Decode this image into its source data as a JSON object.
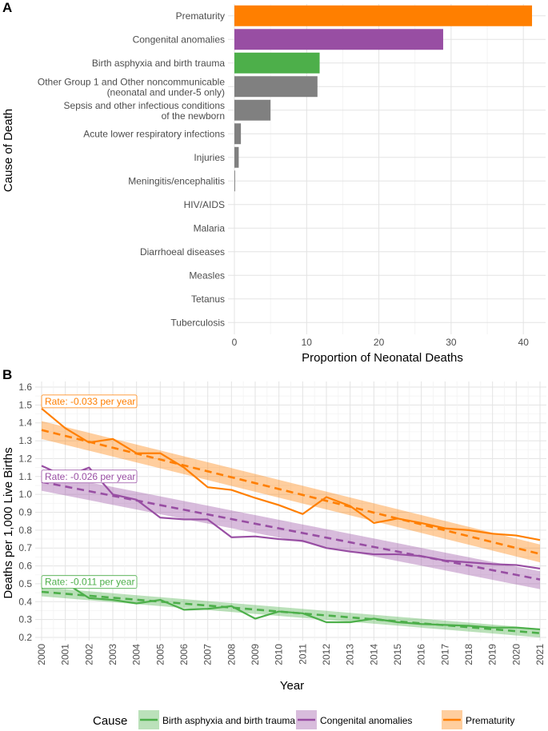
{
  "chart_data": [
    {
      "panel": "A",
      "type": "bar",
      "orientation": "horizontal",
      "ylabel": "Cause of Death",
      "xlabel": "Proportion of Neonatal Deaths",
      "xlim": [
        0,
        43
      ],
      "xticks": [
        "0",
        "10",
        "20",
        "30",
        "40"
      ],
      "xtick_values": [
        0,
        10,
        20,
        30,
        40
      ],
      "categories": [
        [
          "Prematurity"
        ],
        [
          "Congenital anomalies"
        ],
        [
          "Birth asphyxia and birth trauma"
        ],
        [
          "Other Group 1 and Other noncommunicable",
          "(neonatal and under-5 only)"
        ],
        [
          "Sepsis and other infectious conditions",
          "of the newborn"
        ],
        [
          "Acute lower respiratory infections"
        ],
        [
          "Injuries"
        ],
        [
          "Meningitis/encephalitis"
        ],
        [
          "HIV/AIDS"
        ],
        [
          "Malaria"
        ],
        [
          "Diarrhoeal diseases"
        ],
        [
          "Measles"
        ],
        [
          "Tetanus"
        ],
        [
          "Tuberculosis"
        ]
      ],
      "values": [
        41.2,
        28.9,
        11.8,
        11.5,
        5.0,
        0.9,
        0.6,
        0.1,
        0.0,
        0.0,
        0.0,
        0.0,
        0.0,
        0.0
      ],
      "colors": [
        "#ff7f00",
        "#984ea3",
        "#4daf4a",
        "#808080",
        "#808080",
        "#808080",
        "#808080",
        "#808080",
        "#808080",
        "#808080",
        "#808080",
        "#808080",
        "#808080",
        "#808080"
      ]
    },
    {
      "panel": "B",
      "type": "line",
      "ylabel": "Deaths per 1,000 Live Births",
      "xlabel": "Year",
      "ylim": [
        0.2,
        1.6
      ],
      "yticks": [
        "0.2",
        "0.3",
        "0.4",
        "0.5",
        "0.6",
        "0.7",
        "0.8",
        "0.9",
        "1.0",
        "1.1",
        "1.2",
        "1.3",
        "1.4",
        "1.5",
        "1.6"
      ],
      "ytick_values": [
        0.2,
        0.3,
        0.4,
        0.5,
        0.6,
        0.7,
        0.8,
        0.9,
        1.0,
        1.1,
        1.2,
        1.3,
        1.4,
        1.5,
        1.6
      ],
      "x": [
        2000,
        2001,
        2002,
        2003,
        2004,
        2005,
        2006,
        2007,
        2008,
        2009,
        2010,
        2011,
        2012,
        2013,
        2014,
        2015,
        2016,
        2017,
        2018,
        2019,
        2020,
        2021
      ],
      "xticks": [
        "2000",
        "2001",
        "2002",
        "2003",
        "2004",
        "2005",
        "2006",
        "2007",
        "2008",
        "2009",
        "2010",
        "2011",
        "2012",
        "2013",
        "2014",
        "2015",
        "2016",
        "2017",
        "2018",
        "2019",
        "2020",
        "2021"
      ],
      "legend_title": "Cause",
      "legend_position": "bottom",
      "series": [
        {
          "name": "Prematurity",
          "color": "#ff7f00",
          "values": [
            1.48,
            1.37,
            1.29,
            1.31,
            1.23,
            1.23,
            1.15,
            1.04,
            1.025,
            0.98,
            0.94,
            0.89,
            0.985,
            0.935,
            0.84,
            0.865,
            0.84,
            0.81,
            0.8,
            0.78,
            0.77,
            0.745
          ],
          "trend": [
            1.36,
            1.327,
            1.294,
            1.261,
            1.228,
            1.195,
            1.162,
            1.129,
            1.096,
            1.063,
            1.03,
            0.997,
            0.964,
            0.931,
            0.898,
            0.865,
            0.832,
            0.799,
            0.766,
            0.733,
            0.7,
            0.667
          ],
          "band_start": [
            1.31,
            1.41
          ],
          "band_end": [
            0.62,
            0.72
          ],
          "label": "Rate: -0.033 per year",
          "label_y": 1.52
        },
        {
          "name": "Congenital anomalies",
          "color": "#984ea3",
          "values": [
            1.16,
            1.1,
            1.15,
            1.0,
            0.97,
            0.87,
            0.86,
            0.86,
            0.76,
            0.765,
            0.75,
            0.74,
            0.7,
            0.68,
            0.665,
            0.665,
            0.655,
            0.63,
            0.62,
            0.61,
            0.605,
            0.585
          ],
          "trend": [
            1.07,
            1.044,
            1.018,
            0.992,
            0.966,
            0.94,
            0.914,
            0.888,
            0.862,
            0.836,
            0.81,
            0.784,
            0.758,
            0.732,
            0.706,
            0.68,
            0.654,
            0.628,
            0.602,
            0.576,
            0.55,
            0.524
          ],
          "band_start": [
            1.02,
            1.12
          ],
          "band_end": [
            0.47,
            0.57
          ],
          "label": "Rate: -0.026 per year",
          "label_y": 1.1
        },
        {
          "name": "Birth asphyxia and birth trauma",
          "color": "#4daf4a",
          "values": [
            0.475,
            0.505,
            0.42,
            0.41,
            0.39,
            0.41,
            0.355,
            0.36,
            0.375,
            0.305,
            0.345,
            0.335,
            0.285,
            0.285,
            0.305,
            0.285,
            0.275,
            0.27,
            0.265,
            0.255,
            0.255,
            0.245
          ],
          "trend": [
            0.455,
            0.444,
            0.433,
            0.422,
            0.411,
            0.4,
            0.389,
            0.378,
            0.367,
            0.356,
            0.345,
            0.334,
            0.323,
            0.312,
            0.301,
            0.29,
            0.279,
            0.268,
            0.257,
            0.246,
            0.235,
            0.224
          ],
          "band_start": [
            0.43,
            0.48
          ],
          "band_end": [
            0.2,
            0.25
          ],
          "label": "Rate: -0.011 per year",
          "label_y": 0.51
        }
      ]
    }
  ],
  "panel_labels": [
    "A",
    "B"
  ]
}
